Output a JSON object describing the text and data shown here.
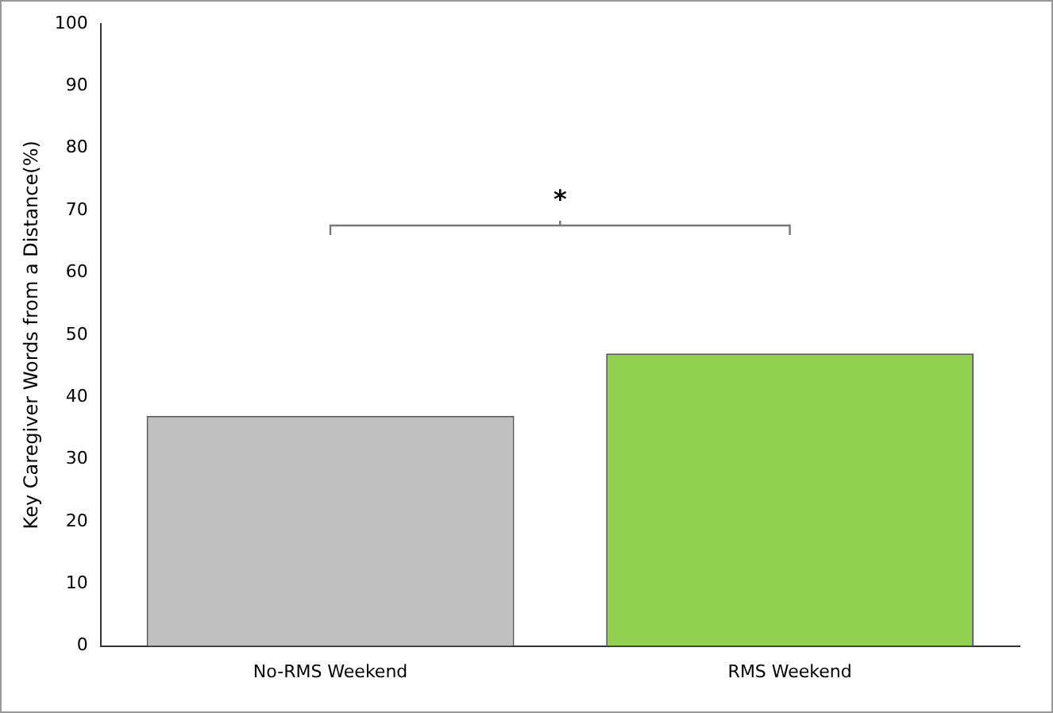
{
  "chart_data": {
    "type": "bar",
    "ylabel": "Key Caregiver Words from a Distance(%)",
    "categories": [
      "No-RMS Weekend",
      "RMS Weekend"
    ],
    "colors": [
      "#c0c0c0",
      "#92d050"
    ],
    "values": [
      37,
      47
    ],
    "ylim": [
      0,
      100
    ],
    "yticks": [
      0,
      10,
      20,
      30,
      40,
      50,
      60,
      70,
      80,
      90,
      100
    ],
    "grid": false,
    "legend": false,
    "annotations": [
      "*"
    ]
  }
}
